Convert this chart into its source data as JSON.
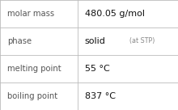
{
  "rows": [
    {
      "label": "molar mass",
      "value": "480.05 g/mol",
      "value2": null
    },
    {
      "label": "phase",
      "value": "solid",
      "value2": "(at STP)"
    },
    {
      "label": "melting point",
      "value": "55 °C",
      "value2": null
    },
    {
      "label": "boiling point",
      "value": "837 °C",
      "value2": null
    }
  ],
  "background_color": "#ffffff",
  "border_color": "#bbbbbb",
  "label_color": "#555555",
  "value_color": "#111111",
  "value2_color": "#888888",
  "label_fontsize": 7.2,
  "value_fontsize": 8.0,
  "value2_fontsize": 5.8,
  "col_split": 0.435
}
